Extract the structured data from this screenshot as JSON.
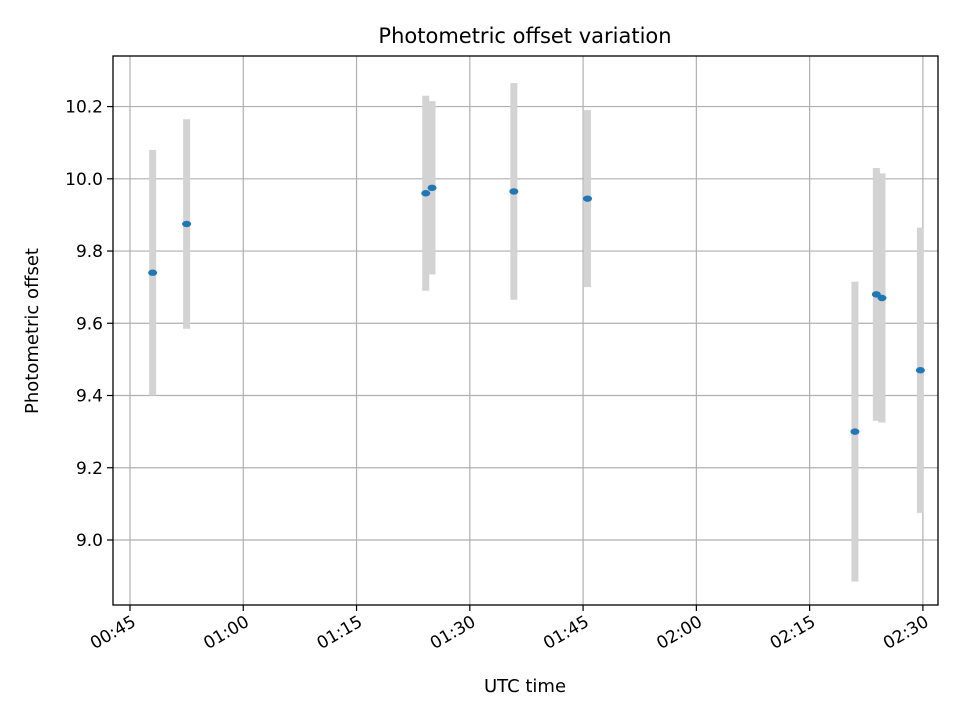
{
  "chart_data": {
    "type": "scatter",
    "title": "Photometric offset variation",
    "xlabel": "UTC time",
    "ylabel": "Photometric offset",
    "xlim": [
      "00:42:45",
      "02:32:00"
    ],
    "ylim": [
      8.82,
      10.34
    ],
    "x_ticks": [
      "00:45",
      "01:00",
      "01:15",
      "01:30",
      "01:45",
      "02:00",
      "02:15",
      "02:30"
    ],
    "y_ticks": [
      "9.0",
      "9.2",
      "9.4",
      "9.6",
      "9.8",
      "10.0",
      "10.2"
    ],
    "grid": true,
    "series": [
      {
        "marker_color": "#1f77b4",
        "errorbar_color": "#d3d3d3",
        "points": [
          {
            "x": "00:48:00",
            "y": 9.74,
            "yerr": 0.34
          },
          {
            "x": "00:52:30",
            "y": 9.875,
            "yerr": 0.29
          },
          {
            "x": "01:24:10",
            "y": 9.96,
            "yerr": 0.27
          },
          {
            "x": "01:25:00",
            "y": 9.975,
            "yerr": 0.24
          },
          {
            "x": "01:35:50",
            "y": 9.965,
            "yerr": 0.3
          },
          {
            "x": "01:45:35",
            "y": 9.945,
            "yerr": 0.245
          },
          {
            "x": "02:21:00",
            "y": 9.3,
            "yerr": 0.415
          },
          {
            "x": "02:23:50",
            "y": 9.68,
            "yerr": 0.35
          },
          {
            "x": "02:24:35",
            "y": 9.67,
            "yerr": 0.345
          },
          {
            "x": "02:29:40",
            "y": 9.47,
            "yerr": 0.395
          }
        ]
      }
    ]
  }
}
